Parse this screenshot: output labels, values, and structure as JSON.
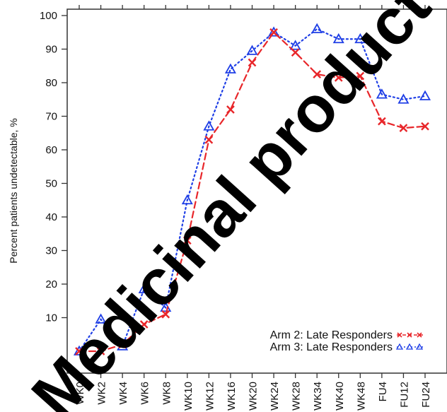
{
  "chart_data": {
    "type": "line",
    "ylabel": "Percent patients undetectable, %",
    "xlabel": "",
    "ylim": [
      0,
      100
    ],
    "yticks": [
      10,
      20,
      30,
      40,
      50,
      60,
      70,
      80,
      90,
      100
    ],
    "categories": [
      "WK0",
      "WK2",
      "WK4",
      "WK6",
      "WK8",
      "WK10",
      "WK12",
      "WK16",
      "WK20",
      "WK24",
      "WK28",
      "WK34",
      "WK40",
      "WK48",
      "FU4",
      "FU12",
      "FU24"
    ],
    "series": [
      {
        "name": "Arm 2: Late Responders",
        "color": "#e8262a",
        "marker": "x",
        "style": "dashed",
        "values": [
          0,
          0,
          2,
          8,
          11,
          33,
          63,
          72,
          86,
          95,
          89,
          82.5,
          81.5,
          82,
          68.5,
          66.5,
          67
        ]
      },
      {
        "name": "Arm 3: Late Responders",
        "color": "#1f3fe6",
        "marker": "triangle",
        "style": "dotted",
        "values": [
          0,
          9.5,
          1.5,
          18.5,
          13,
          45,
          67,
          84,
          89.5,
          95,
          91,
          96,
          93,
          93,
          76.5,
          75,
          76
        ]
      }
    ],
    "legend_position": "bottom-right",
    "grid": false
  },
  "watermark": {
    "text": "Medicinal product",
    "color": "#000000"
  }
}
